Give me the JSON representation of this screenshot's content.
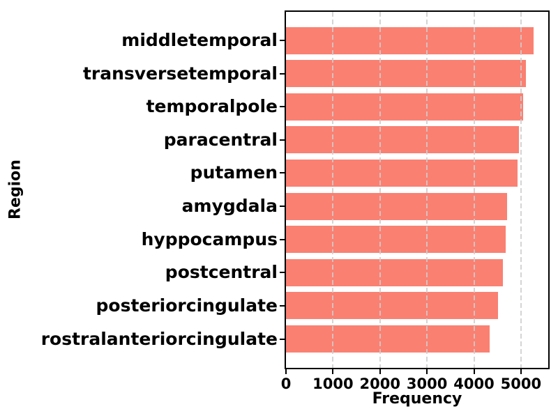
{
  "chart_data": {
    "type": "bar",
    "orientation": "horizontal",
    "title": "",
    "xlabel": "Frequency",
    "ylabel": "Region",
    "categories": [
      "middletemporal",
      "transversetemporal",
      "temporalpole",
      "paracentral",
      "putamen",
      "amygdala",
      "hyppocampus",
      "postcentral",
      "posteriorcingulate",
      "rostralanteriorcingulate"
    ],
    "values": [
      5270,
      5100,
      5050,
      4950,
      4930,
      4700,
      4680,
      4610,
      4510,
      4340
    ],
    "xlim": [
      0,
      5580
    ],
    "xticks": [
      0,
      1000,
      2000,
      3000,
      4000,
      5000
    ],
    "bar_color": "#FA8072",
    "grid": true,
    "grid_axis": "x",
    "gridline_style": "dashed",
    "gridline_color": "#CDCDCD",
    "legend": "none"
  }
}
